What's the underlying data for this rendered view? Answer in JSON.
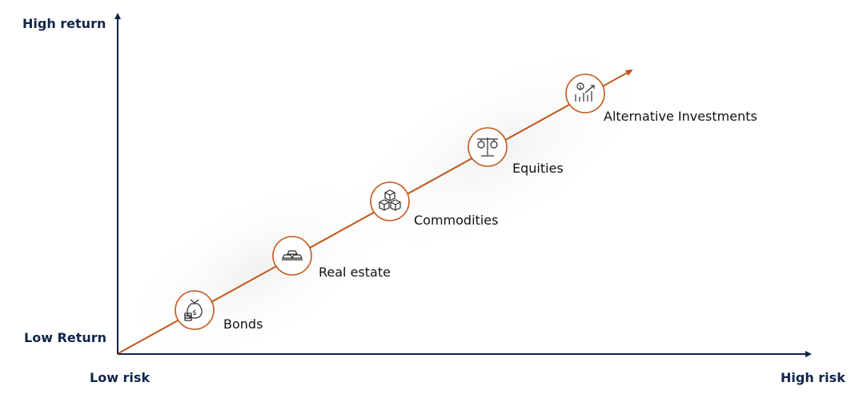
{
  "axes": {
    "y_high": "High return",
    "y_low": "Low Return",
    "x_low": "Low risk",
    "x_high": "High risk"
  },
  "colors": {
    "axis": "#0f2344",
    "accent": "#c2571a",
    "icon": "#2a2a2a",
    "text": "#111111"
  },
  "assets": [
    {
      "label": "Bonds",
      "icon": "money-bag-icon"
    },
    {
      "label": "Real estate",
      "icon": "gold-bars-icon"
    },
    {
      "label": "Commodities",
      "icon": "boxes-icon"
    },
    {
      "label": "Equities",
      "icon": "scales-icon"
    },
    {
      "label": "Alternative Investments",
      "icon": "growth-chart-icon"
    }
  ]
}
